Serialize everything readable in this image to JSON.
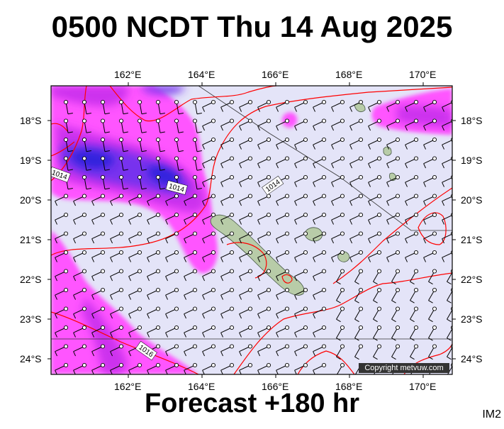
{
  "header": {
    "title": "0500 NCDT Thu 14 Aug 2025"
  },
  "footer": {
    "forecast": "Forecast +180 hr",
    "tag": "IM2"
  },
  "map": {
    "copyright": "Copyright metvuw.com",
    "top_lon_labels": [
      "162°E",
      "164°E",
      "166°E",
      "168°E",
      "170°E"
    ],
    "bottom_lon_labels": [
      "162°E",
      "164°E",
      "166°E",
      "168°E",
      "170°E"
    ],
    "left_lat_labels": [
      "18°S",
      "19°S",
      "20°S",
      "21°S",
      "22°S",
      "23°S",
      "24°S"
    ],
    "right_lat_labels": [
      "18°S",
      "19°S",
      "20°S",
      "21°S",
      "22°S",
      "23°S",
      "24°S"
    ],
    "isobar_labels": [
      "1014",
      "1014",
      "1014",
      "1016"
    ],
    "colors": {
      "sea_background": "#e4e4f8",
      "rain_light": "#ff55ff",
      "rain_medium": "#cc33ee",
      "rain_heavy": "#7733ee",
      "rain_very_heavy": "#3322dd",
      "isobar": "#ff0000",
      "land": "#b8cca8"
    }
  }
}
